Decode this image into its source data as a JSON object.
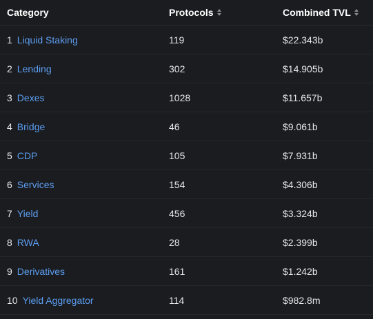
{
  "header": {
    "category": "Category",
    "protocols": "Protocols",
    "tvl": "Combined TVL"
  },
  "rows": [
    {
      "rank": "1",
      "name": "Liquid Staking",
      "protocols": "119",
      "tvl": "$22.343b"
    },
    {
      "rank": "2",
      "name": "Lending",
      "protocols": "302",
      "tvl": "$14.905b"
    },
    {
      "rank": "3",
      "name": "Dexes",
      "protocols": "1028",
      "tvl": "$11.657b"
    },
    {
      "rank": "4",
      "name": "Bridge",
      "protocols": "46",
      "tvl": "$9.061b"
    },
    {
      "rank": "5",
      "name": "CDP",
      "protocols": "105",
      "tvl": "$7.931b"
    },
    {
      "rank": "6",
      "name": "Services",
      "protocols": "154",
      "tvl": "$4.306b"
    },
    {
      "rank": "7",
      "name": "Yield",
      "protocols": "456",
      "tvl": "$3.324b"
    },
    {
      "rank": "8",
      "name": "RWA",
      "protocols": "28",
      "tvl": "$2.399b"
    },
    {
      "rank": "9",
      "name": "Derivatives",
      "protocols": "161",
      "tvl": "$1.242b"
    },
    {
      "rank": "10",
      "name": "Yield Aggregator",
      "protocols": "114",
      "tvl": "$982.8m"
    }
  ],
  "colors": {
    "background": "#1b1c1f",
    "link": "#5c9ef2",
    "text": "#e6e7ea"
  }
}
